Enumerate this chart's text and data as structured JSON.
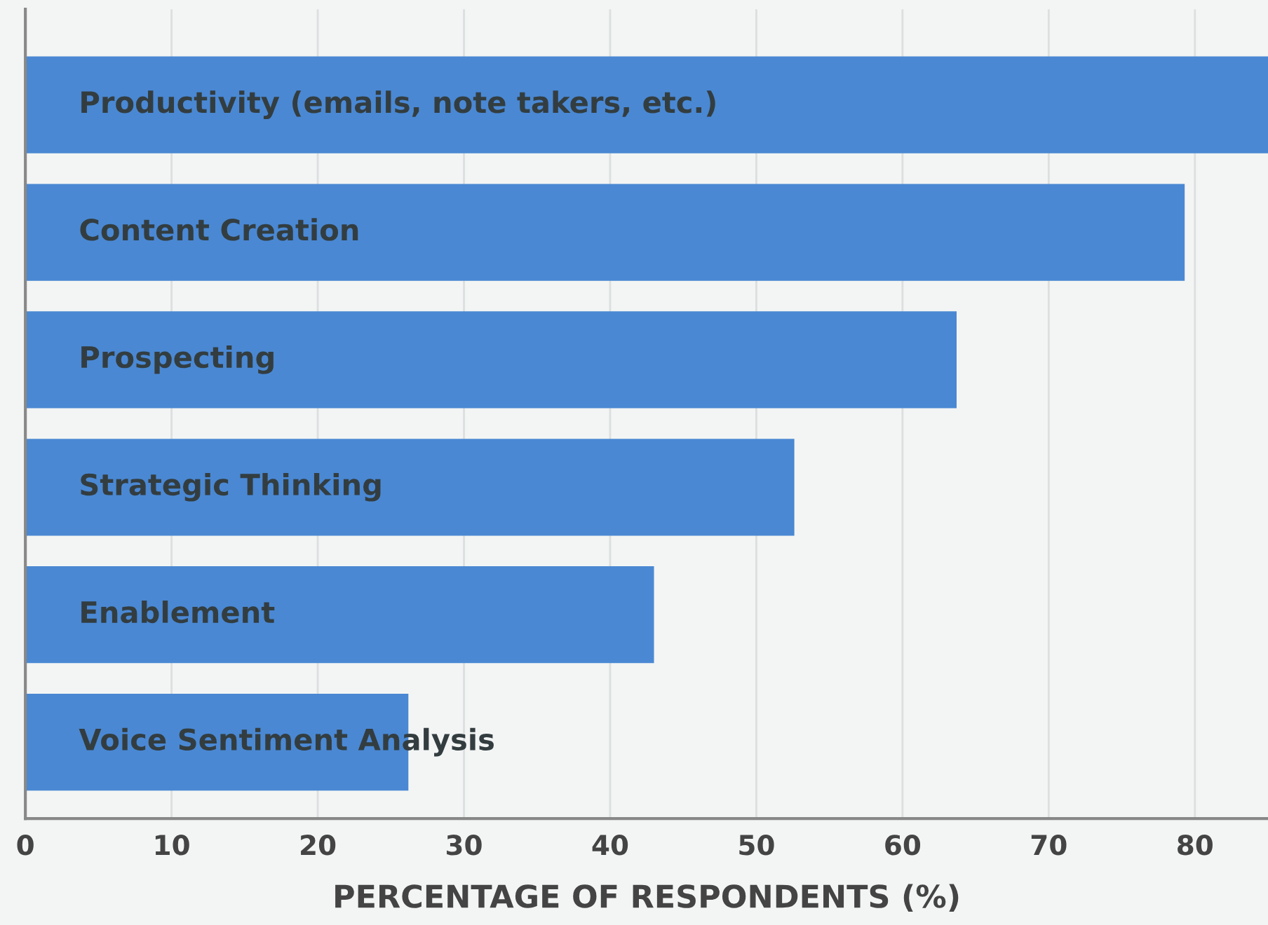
{
  "chart_data": {
    "type": "bar",
    "orientation": "horizontal",
    "xlabel": "PERCENTAGE OF RESPONDENTS (%)",
    "categories": [
      "Productivity (emails, note takers, etc.)",
      "Content Creation",
      "Prospecting",
      "Strategic Thinking",
      "Enablement",
      "Voice Sentiment Analysis"
    ],
    "values": [
      85.0,
      79.3,
      63.7,
      52.6,
      43.0,
      26.2
    ],
    "color": "#4a88d3",
    "xlim": [
      0,
      85
    ],
    "xticks": [
      0,
      10,
      20,
      30,
      40,
      50,
      60,
      70,
      80
    ],
    "grid": "x"
  }
}
